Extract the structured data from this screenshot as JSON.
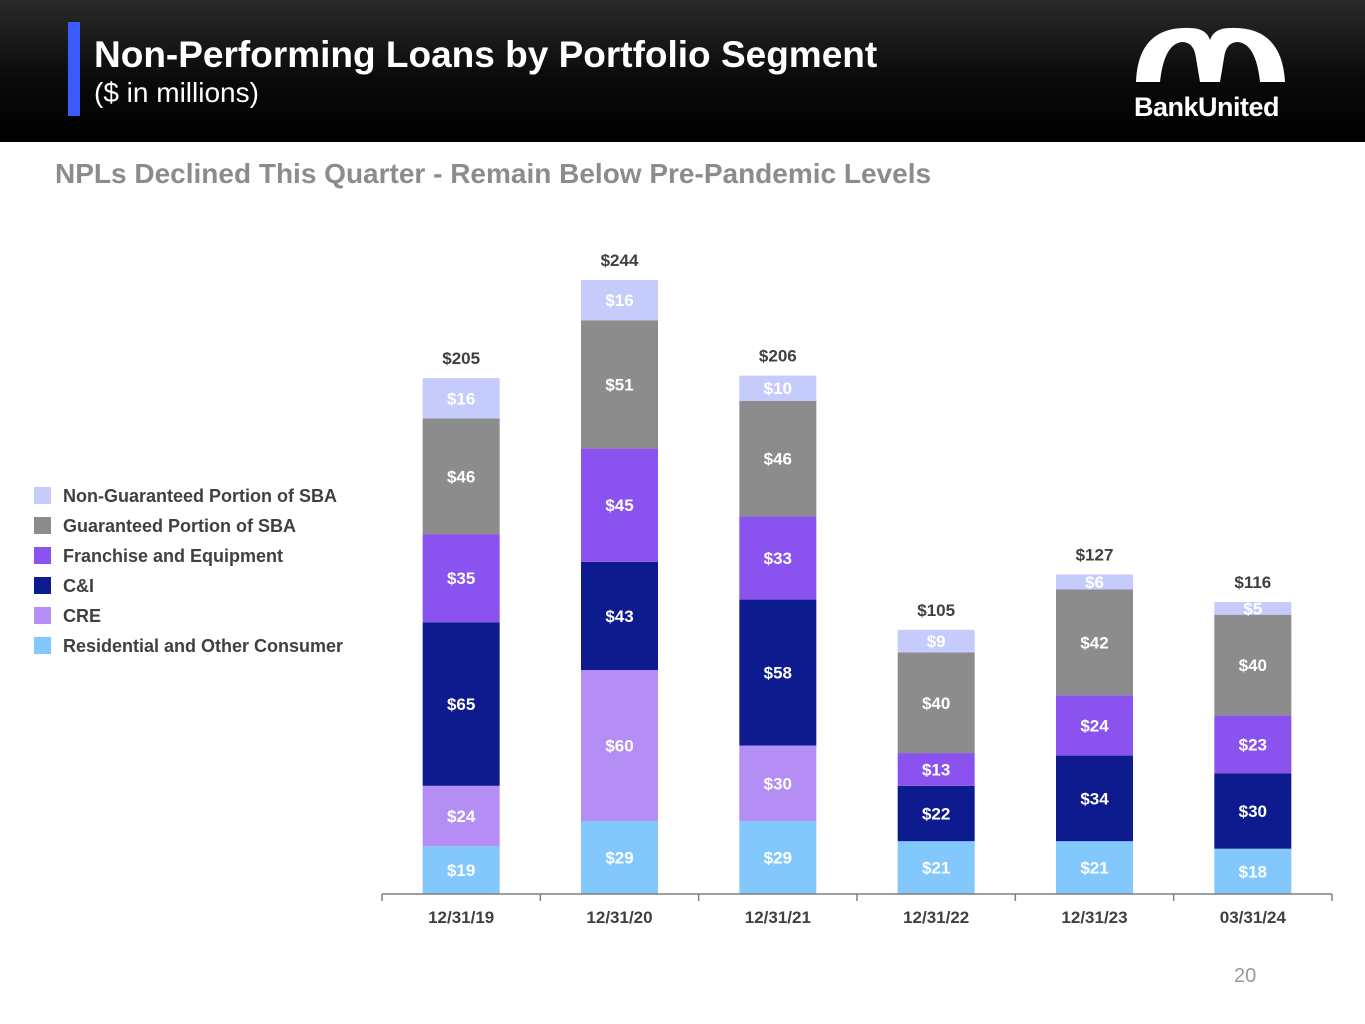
{
  "header": {
    "title": "Non-Performing Loans by Portfolio Segment",
    "subtitle": "($ in millions)",
    "logo_text": "BankUnited"
  },
  "headline": "NPLs Declined This Quarter - Remain Below Pre-Pandemic Levels",
  "page_number": "20",
  "colors": {
    "accent": "#3d5afe",
    "header_bg": "#000000",
    "headline": "#8c8c8c"
  },
  "legend": [
    {
      "label": "Non-Guaranteed Portion of SBA",
      "color": "#c5cbfb"
    },
    {
      "label": "Guaranteed Portion of SBA",
      "color": "#8c8c8c"
    },
    {
      "label": "Franchise and Equipment",
      "color": "#8a52ef"
    },
    {
      "label": "C&I",
      "color": "#0d1b8f"
    },
    {
      "label": "CRE",
      "color": "#b48ef5"
    },
    {
      "label": "Residential and Other Consumer",
      "color": "#82c8fc"
    }
  ],
  "chart_data": {
    "type": "bar",
    "stacked": true,
    "categories": [
      "12/31/19",
      "12/31/20",
      "12/31/21",
      "12/31/22",
      "12/31/23",
      "03/31/24"
    ],
    "series": [
      {
        "name": "Residential and Other Consumer",
        "color": "#82c8fc",
        "values": [
          19,
          29,
          29,
          21,
          21,
          18
        ],
        "labels": [
          "$19",
          "$29",
          "$29",
          "$21",
          "$21",
          "$18"
        ]
      },
      {
        "name": "CRE",
        "color": "#b48ef5",
        "values": [
          24,
          60,
          30,
          0,
          0,
          0
        ],
        "labels": [
          "$24",
          "$60",
          "$30",
          "",
          "",
          ""
        ]
      },
      {
        "name": "C&I",
        "color": "#0d1b8f",
        "values": [
          65,
          43,
          58,
          22,
          34,
          30
        ],
        "labels": [
          "$65",
          "$43",
          "$58",
          "$22",
          "$34",
          "$30"
        ]
      },
      {
        "name": "Franchise and Equipment",
        "color": "#8a52ef",
        "values": [
          35,
          45,
          33,
          13,
          24,
          23
        ],
        "labels": [
          "$35",
          "$45",
          "$33",
          "$13",
          "$24",
          "$23"
        ]
      },
      {
        "name": "Guaranteed Portion of SBA",
        "color": "#8c8c8c",
        "values": [
          46,
          51,
          46,
          40,
          42,
          40
        ],
        "labels": [
          "$46",
          "$51",
          "$46",
          "$40",
          "$42",
          "$40"
        ]
      },
      {
        "name": "Non-Guaranteed Portion of SBA",
        "color": "#c5cbfb",
        "values": [
          16,
          16,
          10,
          9,
          6,
          5
        ],
        "labels": [
          "$16",
          "$16",
          "$10",
          "$9",
          "$6",
          "$5"
        ]
      }
    ],
    "totals": [
      205,
      244,
      206,
      105,
      127,
      116
    ],
    "total_labels": [
      "$205",
      "$244",
      "$206",
      "$105",
      "$127",
      "$116"
    ],
    "ylim": [
      0,
      244
    ],
    "grid": false,
    "legend_position": "left"
  }
}
